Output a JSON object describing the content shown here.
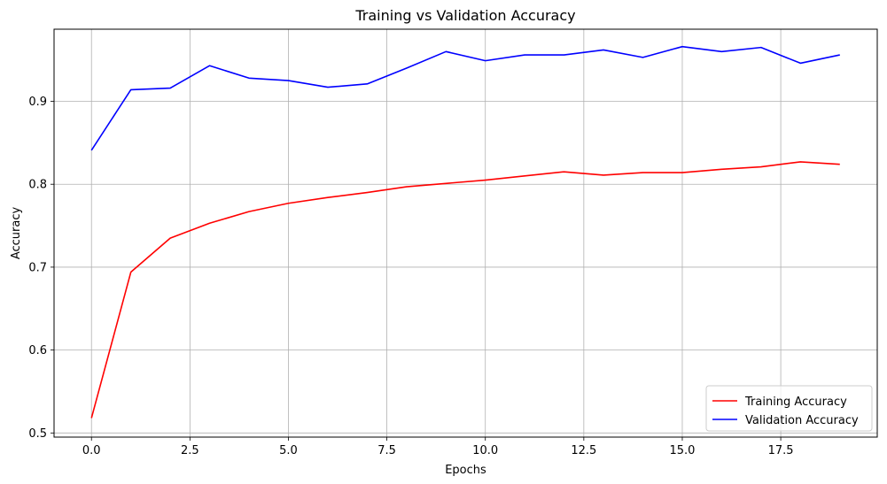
{
  "chart_data": {
    "type": "line",
    "title": "Training vs Validation Accuracy",
    "xlabel": "Epochs",
    "ylabel": "Accuracy",
    "xlim": [
      -0.95,
      19.95
    ],
    "ylim": [
      0.495,
      0.987
    ],
    "xticks": [
      0.0,
      2.5,
      5.0,
      7.5,
      10.0,
      12.5,
      15.0,
      17.5
    ],
    "xtick_labels": [
      "0.0",
      "2.5",
      "5.0",
      "7.5",
      "10.0",
      "12.5",
      "15.0",
      "17.5"
    ],
    "yticks": [
      0.5,
      0.6,
      0.7,
      0.8,
      0.9
    ],
    "ytick_labels": [
      "0.5",
      "0.6",
      "0.7",
      "0.8",
      "0.9"
    ],
    "grid": true,
    "legend_position": "bottom-right",
    "x": [
      0,
      1,
      2,
      3,
      4,
      5,
      6,
      7,
      8,
      9,
      10,
      11,
      12,
      13,
      14,
      15,
      16,
      17,
      18,
      19
    ],
    "series": [
      {
        "name": "Training Accuracy",
        "color": "#ff0000",
        "values": [
          0.518,
          0.694,
          0.735,
          0.753,
          0.767,
          0.777,
          0.784,
          0.79,
          0.797,
          0.801,
          0.805,
          0.81,
          0.815,
          0.811,
          0.814,
          0.814,
          0.818,
          0.821,
          0.827,
          0.824
        ]
      },
      {
        "name": "Validation Accuracy",
        "color": "#0000ff",
        "values": [
          0.841,
          0.914,
          0.916,
          0.943,
          0.928,
          0.925,
          0.917,
          0.921,
          0.94,
          0.96,
          0.949,
          0.956,
          0.956,
          0.962,
          0.953,
          0.966,
          0.96,
          0.965,
          0.946,
          0.956
        ]
      }
    ]
  }
}
